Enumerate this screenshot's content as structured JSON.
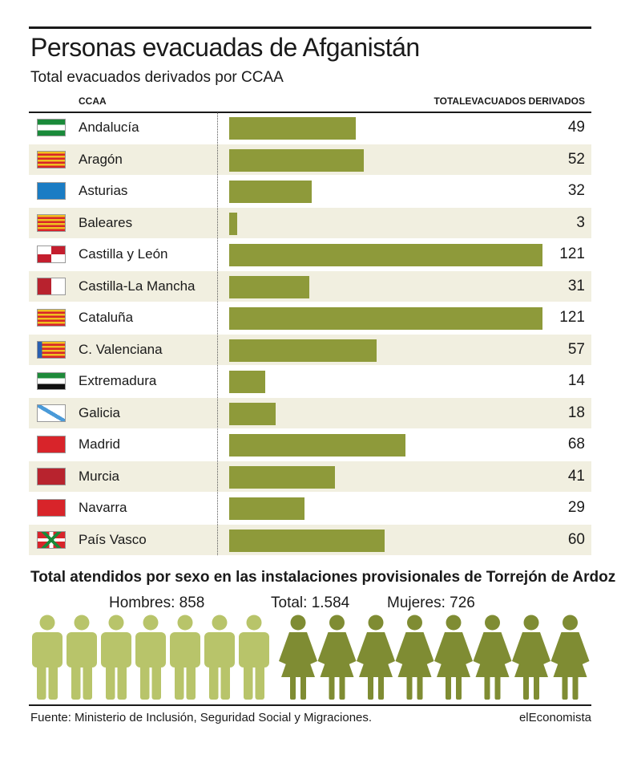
{
  "title": "Personas evacuadas de Afganistán",
  "subtitle": "Total evacuados derivados por CCAA",
  "headers": {
    "ccaa": "CCAA",
    "total": "TOTALEVACUADOS DERIVADOS"
  },
  "colors": {
    "bar": "#8e9a3a",
    "men": "#b8c46a",
    "women": "#7f8c33",
    "row_alt": "#f1efe0"
  },
  "chart_data": {
    "type": "bar",
    "categories": [
      "Andalucía",
      "Aragón",
      "Asturias",
      "Baleares",
      "Castilla y León",
      "Castilla-La Mancha",
      "Cataluña",
      "C. Valenciana",
      "Extremadura",
      "Galicia",
      "Madrid",
      "Murcia",
      "Navarra",
      "País Vasco"
    ],
    "values": [
      49,
      52,
      32,
      3,
      121,
      31,
      121,
      57,
      14,
      18,
      68,
      41,
      29,
      60
    ],
    "title": "Total evacuados derivados por CCAA",
    "xlabel": "",
    "ylabel": "",
    "ylim": [
      0,
      121
    ]
  },
  "flags": [
    "andalucia-flag-icon",
    "aragon-flag-icon",
    "asturias-flag-icon",
    "baleares-flag-icon",
    "castilla-leon-flag-icon",
    "castilla-la-mancha-flag-icon",
    "cataluna-flag-icon",
    "valenciana-flag-icon",
    "extremadura-flag-icon",
    "galicia-flag-icon",
    "madrid-flag-icon",
    "murcia-flag-icon",
    "navarra-flag-icon",
    "pais-vasco-flag-icon"
  ],
  "sex": {
    "title": "Total atendidos por sexo en las instalaciones provisionales de Torrejón de Ardoz",
    "hombres_label": "Hombres: 858",
    "total_label": "Total: 1.584",
    "mujeres_label": "Mujeres: 726",
    "hombres": 858,
    "mujeres": 726,
    "total": 1584,
    "men_icons": 7,
    "women_icons": 8
  },
  "footer": {
    "source": "Fuente: Ministerio de Inclusión, Seguridad Social y Migraciones.",
    "brand": "elEconomista"
  }
}
